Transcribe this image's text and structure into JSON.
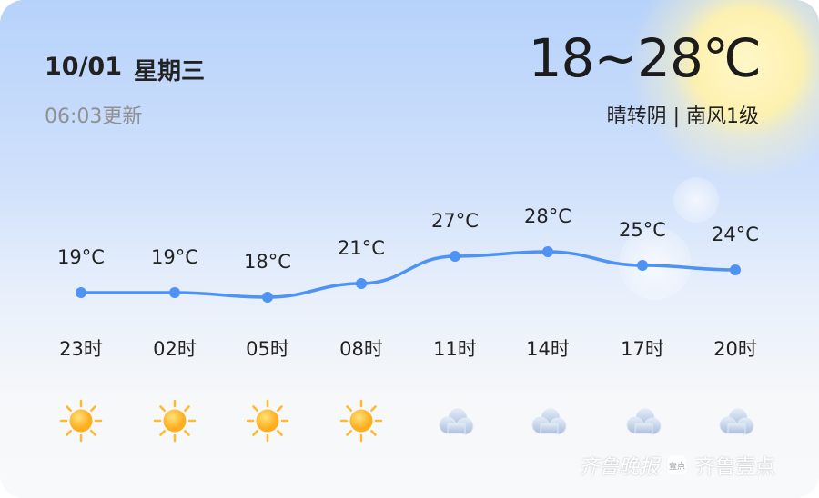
{
  "header": {
    "date": "10/01",
    "weekday": "星期三",
    "updated": "06:03更新",
    "temp_range": "18~28℃",
    "condition": "晴转阴 | 南风1级"
  },
  "colors": {
    "line": "#4e92f5",
    "sun": "#ffb92e",
    "cloud": "#b8c9e3"
  },
  "chart_data": {
    "type": "line",
    "categories": [
      "23时",
      "02时",
      "05时",
      "08时",
      "11时",
      "14时",
      "17时",
      "20时"
    ],
    "values": [
      19,
      19,
      18,
      21,
      27,
      28,
      25,
      24
    ],
    "value_labels": [
      "19°C",
      "19°C",
      "18°C",
      "21°C",
      "27°C",
      "28°C",
      "25°C",
      "24°C"
    ],
    "icons": [
      "sun-icon",
      "sun-icon",
      "sun-icon",
      "sun-icon",
      "cloud-icon",
      "cloud-icon",
      "cloud-icon",
      "cloud-icon"
    ]
  },
  "watermark": {
    "brand1": "齐鲁晚报",
    "badge": "壹点",
    "brand2": "齐鲁壹点"
  }
}
